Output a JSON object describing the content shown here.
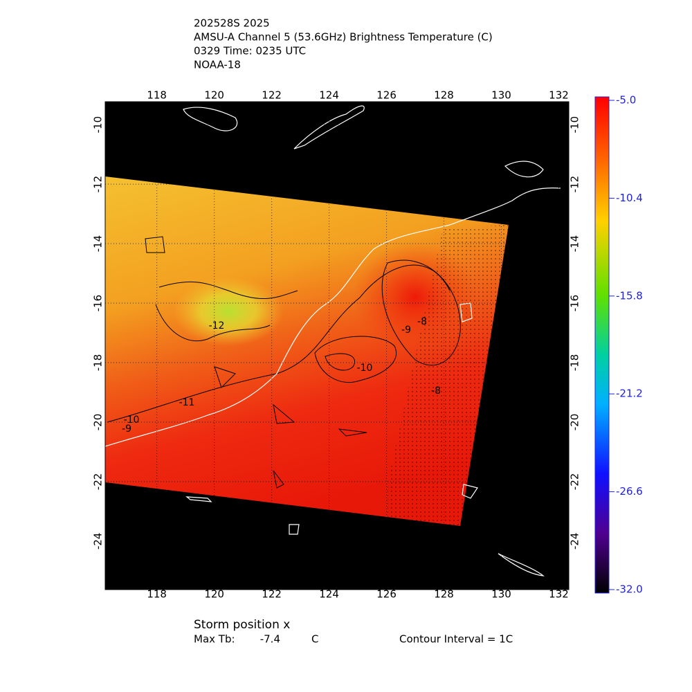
{
  "header": {
    "lines": [
      "202528S 2025",
      "AMSU-A Channel 5 (53.6GHz) Brightness Temperature (C)",
      "0329 Time: 0235 UTC",
      "NOAA-18"
    ]
  },
  "map": {
    "xlim": [
      116.2,
      132.35
    ],
    "ylim": [
      -9.23,
      -25.63
    ],
    "xticks": [
      118,
      120,
      122,
      124,
      126,
      128,
      130,
      132
    ],
    "yticks": [
      -10,
      -12,
      -14,
      -16,
      -18,
      -20,
      -22,
      -24
    ],
    "contour_labels": [
      "-12",
      "-11",
      "-10",
      "-9",
      "-10",
      "-9",
      "-8",
      "-8"
    ]
  },
  "colorbar": {
    "lim": [
      -32.0,
      -5.0
    ],
    "ticks": [
      {
        "value": -5.0,
        "label": "-5.0"
      },
      {
        "value": -10.4,
        "label": "-10.4"
      },
      {
        "value": -15.8,
        "label": "-15.8"
      },
      {
        "value": -21.2,
        "label": "-21.2"
      },
      {
        "value": -26.6,
        "label": "-26.6"
      },
      {
        "value": -32.0,
        "label": "-32.0"
      }
    ]
  },
  "footer": {
    "storm": "Storm position x",
    "max_label": "Max Tb:",
    "max_value": -7.4,
    "max_unit": "C",
    "interval": "Contour Interval = 1C"
  }
}
